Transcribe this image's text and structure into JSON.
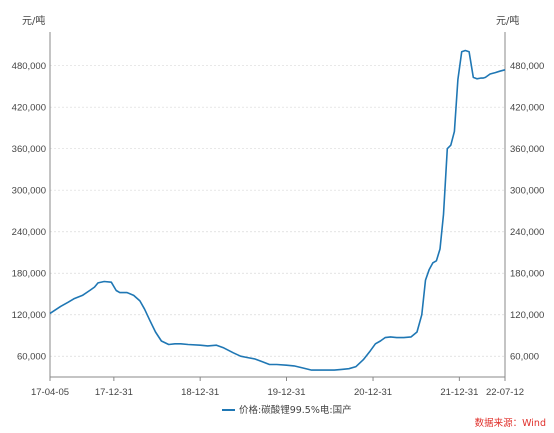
{
  "chart_data": {
    "type": "line",
    "unit_left": "元/吨",
    "unit_right": "元/吨",
    "source": "数据来源：Wind",
    "ylim": [
      30000,
      520000
    ],
    "yticks": [
      60000,
      120000,
      180000,
      240000,
      300000,
      360000,
      420000,
      480000
    ],
    "ytick_labels": [
      "60,000",
      "120,000",
      "180,000",
      "240,000",
      "300,000",
      "360,000",
      "420,000",
      "480,000"
    ],
    "xlim": [
      "2017-04-05",
      "2022-07-12"
    ],
    "xticks": [
      "2017-04-05",
      "2017-12-31",
      "2018-12-31",
      "2019-12-31",
      "2020-12-31",
      "2021-12-31",
      "2022-07-12"
    ],
    "xtick_labels": [
      "17-04-05",
      "17-12-31",
      "18-12-31",
      "19-12-31",
      "20-12-31",
      "21-12-31",
      "22-07-12"
    ],
    "grid": true,
    "legend_position": "bottom",
    "colors": {
      "series": "#1f77b4",
      "source": "#e0302b",
      "grid": "#d9d9d9"
    },
    "series": [
      {
        "name": "价格:碳酸锂99.5%电:国产",
        "x": [
          "2017-04-05",
          "2017-05-20",
          "2017-06-20",
          "2017-07-15",
          "2017-08-20",
          "2017-09-20",
          "2017-10-10",
          "2017-10-25",
          "2017-11-20",
          "2017-12-20",
          "2018-01-10",
          "2018-01-25",
          "2018-02-25",
          "2018-03-25",
          "2018-04-20",
          "2018-05-10",
          "2018-06-01",
          "2018-06-25",
          "2018-07-20",
          "2018-08-20",
          "2018-09-15",
          "2018-10-10",
          "2018-11-10",
          "2018-12-31",
          "2019-02-01",
          "2019-03-10",
          "2019-04-10",
          "2019-05-20",
          "2019-06-20",
          "2019-07-20",
          "2019-08-20",
          "2019-09-20",
          "2019-10-20",
          "2019-11-20",
          "2019-12-31",
          "2020-02-01",
          "2020-03-10",
          "2020-04-15",
          "2020-05-20",
          "2020-06-20",
          "2020-07-20",
          "2020-08-20",
          "2020-09-20",
          "2020-10-20",
          "2020-11-20",
          "2020-12-20",
          "2021-01-10",
          "2021-01-31",
          "2021-02-20",
          "2021-03-15",
          "2021-04-10",
          "2021-05-10",
          "2021-06-10",
          "2021-07-05",
          "2021-07-25",
          "2021-08-10",
          "2021-08-25",
          "2021-09-10",
          "2021-09-25",
          "2021-10-10",
          "2021-10-25",
          "2021-11-10",
          "2021-11-25",
          "2021-12-10",
          "2021-12-25",
          "2022-01-10",
          "2022-01-25",
          "2022-02-10",
          "2022-02-28",
          "2022-03-15",
          "2022-03-31",
          "2022-04-10",
          "2022-04-20",
          "2022-05-10",
          "2022-06-01",
          "2022-06-20",
          "2022-07-12"
        ],
        "y": [
          122000,
          132000,
          138000,
          143000,
          148000,
          155000,
          160000,
          166000,
          168000,
          167000,
          155000,
          152000,
          152000,
          148000,
          140000,
          128000,
          112000,
          95000,
          82000,
          77000,
          78000,
          78000,
          77000,
          76000,
          75000,
          76000,
          72000,
          65000,
          60000,
          58000,
          56000,
          52000,
          48000,
          48000,
          47000,
          46000,
          43000,
          40000,
          40000,
          40000,
          40000,
          41000,
          42000,
          45000,
          55000,
          68000,
          78000,
          82000,
          87000,
          88000,
          87000,
          87000,
          88000,
          95000,
          120000,
          170000,
          185000,
          195000,
          198000,
          215000,
          265000,
          360000,
          365000,
          385000,
          460000,
          500000,
          502000,
          500000,
          463000,
          461000,
          462000,
          462000,
          463000,
          468000,
          470000,
          472000,
          474000
        ]
      }
    ]
  }
}
